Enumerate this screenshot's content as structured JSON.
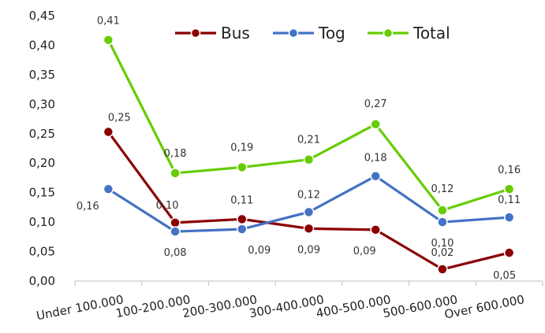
{
  "chart_data": {
    "type": "line",
    "categories": [
      "Under 100.000",
      "100-200.000",
      "200-300.000",
      "300-400.000",
      "400-500.000",
      "500-600.000",
      "Over 600.000"
    ],
    "series": [
      {
        "name": "Bus",
        "color": "#8b0000",
        "values": [
          0.253,
          0.099,
          0.105,
          0.089,
          0.087,
          0.02,
          0.048
        ],
        "labels": [
          "0,25",
          "0,10",
          "0,11",
          "0,09",
          "0,09",
          "0,02",
          "0,05"
        ]
      },
      {
        "name": "Tog",
        "color": "#4472c4",
        "values": [
          0.156,
          0.084,
          0.088,
          0.117,
          0.178,
          0.1,
          0.108
        ],
        "labels": [
          "0,16",
          "0,08",
          "0,09",
          "0,12",
          "0,18",
          "0,10",
          "0,11"
        ]
      },
      {
        "name": "Total",
        "color": "#66cc00",
        "values": [
          0.409,
          0.183,
          0.193,
          0.206,
          0.266,
          0.12,
          0.156
        ],
        "labels": [
          "0,41",
          "0,18",
          "0,19",
          "0,21",
          "0,27",
          "0,12",
          "0,16"
        ]
      }
    ],
    "yticks": [
      "0,00",
      "0,05",
      "0,10",
      "0,15",
      "0,20",
      "0,25",
      "0,30",
      "0,35",
      "0,40",
      "0,45"
    ],
    "ylim": [
      0,
      0.45
    ],
    "title": "",
    "xlabel": "",
    "ylabel": "",
    "grid": false,
    "legend": "top-right"
  }
}
